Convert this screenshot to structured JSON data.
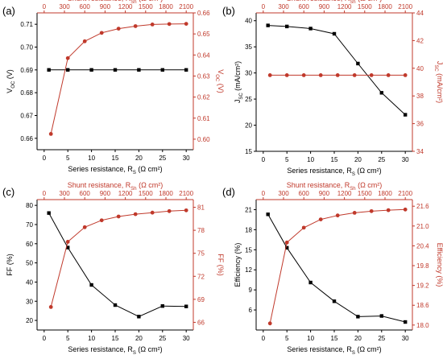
{
  "colors": {
    "black_series": "#000000",
    "red_series": "#c0392b",
    "axis": "#000000"
  },
  "bottom_axis_label": {
    "main": "Series resistance, R",
    "sub": "S",
    "unit": " (Ω cm²)"
  },
  "top_axis_label": {
    "main": "Shunt resistance, R",
    "sub": "Sh",
    "unit": " (Ω cm²)"
  },
  "chart_data": [
    {
      "type": "line",
      "panel_label": "(a)",
      "x_bottom": {
        "ticks": [
          0,
          5,
          10,
          15,
          20,
          25,
          30
        ],
        "lim": [
          -1.5,
          31.5
        ]
      },
      "x_top": {
        "ticks": [
          0,
          300,
          600,
          900,
          1200,
          1500,
          1800,
          2100
        ],
        "lim": [
          -105,
          2205
        ]
      },
      "y_left": {
        "label": {
          "main": "V",
          "sub": "OC",
          "unit": " (V)"
        },
        "ticks": [
          "0.66",
          "0.67",
          "0.68",
          "0.69",
          "0.70",
          "0.71"
        ],
        "lim": [
          0.655,
          0.715
        ]
      },
      "y_right": {
        "label": {
          "main": "V",
          "sub": "OC",
          "unit": " (V)"
        },
        "ticks": [
          "0.60",
          "0.61",
          "0.62",
          "0.63",
          "0.64",
          "0.65",
          "0.66"
        ],
        "lim": [
          0.595,
          0.66
        ]
      },
      "series": [
        {
          "axis_x": "bottom",
          "axis_y": "left",
          "color": "black",
          "marker": "square",
          "x": [
            1,
            5,
            10,
            15,
            20,
            25,
            30
          ],
          "y": [
            0.69,
            0.69,
            0.69,
            0.69,
            0.69,
            0.69,
            0.69
          ]
        },
        {
          "axis_x": "top",
          "axis_y": "right",
          "color": "red",
          "marker": "circle",
          "x": [
            100,
            350,
            600,
            850,
            1100,
            1350,
            1600,
            1850,
            2100
          ],
          "y": [
            0.6025,
            0.6385,
            0.6465,
            0.6505,
            0.6525,
            0.6537,
            0.6545,
            0.6547,
            0.6548
          ]
        }
      ]
    },
    {
      "type": "line",
      "panel_label": "(b)",
      "x_bottom": {
        "ticks": [
          0,
          5,
          10,
          15,
          20,
          25,
          30
        ],
        "lim": [
          -1.5,
          31.5
        ]
      },
      "x_top": {
        "ticks": [
          0,
          300,
          600,
          900,
          1200,
          1500,
          1800,
          2100
        ],
        "lim": [
          -105,
          2205
        ]
      },
      "y_left": {
        "label": {
          "main": "J",
          "sub": "SC",
          "unit": " (mA/cm²)"
        },
        "ticks": [
          "15",
          "20",
          "25",
          "30",
          "35",
          "40"
        ],
        "lim": [
          15,
          41.5
        ]
      },
      "y_right": {
        "label": {
          "main": "J",
          "sub": "SC",
          "unit": " (mA/cm²)"
        },
        "ticks": [
          "34",
          "36",
          "38",
          "40",
          "42",
          "44"
        ],
        "lim": [
          34,
          44
        ]
      },
      "series": [
        {
          "axis_x": "bottom",
          "axis_y": "left",
          "color": "black",
          "marker": "square",
          "x": [
            1,
            5,
            10,
            15,
            20,
            25,
            30
          ],
          "y": [
            39.1,
            38.9,
            38.5,
            37.5,
            31.8,
            26.2,
            22.0
          ]
        },
        {
          "axis_x": "top",
          "axis_y": "right",
          "color": "red",
          "marker": "circle",
          "x": [
            100,
            350,
            600,
            850,
            1100,
            1350,
            1600,
            1850,
            2100
          ],
          "y": [
            39.5,
            39.5,
            39.5,
            39.5,
            39.5,
            39.5,
            39.5,
            39.5,
            39.5
          ]
        }
      ]
    },
    {
      "type": "line",
      "panel_label": "(c)",
      "x_bottom": {
        "ticks": [
          0,
          5,
          10,
          15,
          20,
          25,
          30
        ],
        "lim": [
          -1.5,
          31.5
        ]
      },
      "x_top": {
        "ticks": [
          0,
          300,
          600,
          900,
          1200,
          1500,
          1800,
          2100
        ],
        "lim": [
          -105,
          2205
        ]
      },
      "y_left": {
        "label": {
          "main": "FF",
          "sub": "",
          "unit": " (%)"
        },
        "ticks": [
          "20",
          "30",
          "40",
          "50",
          "60",
          "70",
          "80"
        ],
        "lim": [
          15,
          83
        ]
      },
      "y_right": {
        "label": {
          "main": "FF",
          "sub": "",
          "unit": " (%)"
        },
        "ticks": [
          "66",
          "69",
          "72",
          "75",
          "78",
          "81"
        ],
        "lim": [
          65,
          82
        ]
      },
      "series": [
        {
          "axis_x": "bottom",
          "axis_y": "left",
          "color": "black",
          "marker": "square",
          "x": [
            1,
            5,
            10,
            15,
            20,
            25,
            30
          ],
          "y": [
            76.0,
            58.0,
            38.5,
            28.0,
            22.0,
            27.5,
            27.3
          ]
        },
        {
          "axis_x": "top",
          "axis_y": "right",
          "color": "red",
          "marker": "circle",
          "x": [
            100,
            350,
            600,
            850,
            1100,
            1350,
            1600,
            1850,
            2100
          ],
          "y": [
            68.0,
            76.5,
            78.4,
            79.3,
            79.8,
            80.1,
            80.3,
            80.5,
            80.6
          ]
        }
      ]
    },
    {
      "type": "line",
      "panel_label": "(d)",
      "x_bottom": {
        "ticks": [
          0,
          5,
          10,
          15,
          20,
          25,
          30
        ],
        "lim": [
          -1.5,
          31.5
        ]
      },
      "x_top": {
        "ticks": [
          0,
          300,
          600,
          900,
          1200,
          1500,
          1800,
          2100
        ],
        "lim": [
          -105,
          2205
        ]
      },
      "y_left": {
        "label": {
          "main": "Efficiency",
          "sub": "",
          "unit": " (%)"
        },
        "ticks": [
          "6",
          "9",
          "12",
          "15",
          "18",
          "21"
        ],
        "lim": [
          3,
          22.5
        ]
      },
      "y_right": {
        "label": {
          "main": "Efficiency",
          "sub": "",
          "unit": " (%)"
        },
        "ticks": [
          "18.0",
          "18.6",
          "19.2",
          "19.8",
          "20.4",
          "21.0",
          "21.6"
        ],
        "lim": [
          17.85,
          21.8
        ]
      },
      "series": [
        {
          "axis_x": "bottom",
          "axis_y": "left",
          "color": "black",
          "marker": "square",
          "x": [
            1,
            5,
            10,
            15,
            20,
            25,
            30
          ],
          "y": [
            20.3,
            15.3,
            10.1,
            7.3,
            5.0,
            5.1,
            4.2
          ]
        },
        {
          "axis_x": "top",
          "axis_y": "right",
          "color": "red",
          "marker": "circle",
          "x": [
            100,
            350,
            600,
            850,
            1100,
            1350,
            1600,
            1850,
            2100
          ],
          "y": [
            18.05,
            20.5,
            20.95,
            21.2,
            21.32,
            21.4,
            21.45,
            21.48,
            21.5
          ]
        }
      ]
    }
  ]
}
